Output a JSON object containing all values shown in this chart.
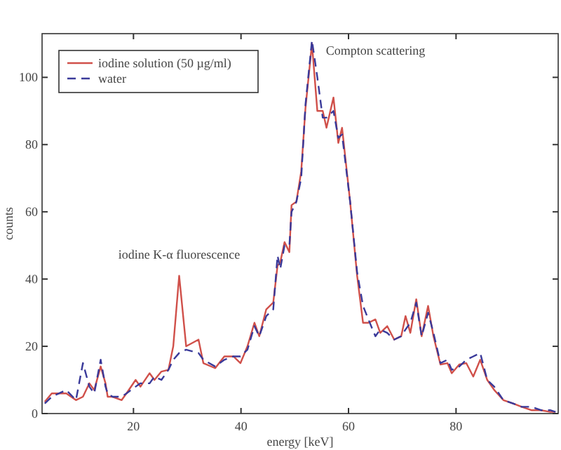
{
  "chart_data": {
    "type": "line",
    "xlabel": "energy [keV]",
    "ylabel": "counts",
    "xlim": [
      3,
      99
    ],
    "ylim": [
      0,
      113
    ],
    "xticks": [
      20,
      40,
      60,
      80
    ],
    "yticks": [
      0,
      20,
      40,
      60,
      80,
      100
    ],
    "grid": false,
    "legend": "top left",
    "annotations": [
      {
        "text": "iodine K-α fluorescence",
        "x": 28.5,
        "y": 41
      },
      {
        "text": "Compton scattering",
        "x": 53.2,
        "y": 110
      }
    ],
    "series": [
      {
        "name": "iodine solution (50 µg/ml)",
        "color": "#d0504a",
        "line_style": "solid",
        "x": [
          3.5,
          4.8,
          7.5,
          9.3,
          10.6,
          11.8,
          12.7,
          13.9,
          14.8,
          15.2,
          16.1,
          17.8,
          18.7,
          20.4,
          21.3,
          23,
          23.9,
          25.2,
          26.5,
          27.4,
          28.5,
          29.8,
          32.1,
          33,
          35.2,
          36.9,
          38.6,
          39.9,
          41.2,
          42.5,
          43.4,
          44.7,
          46,
          46.8,
          47.3,
          48.1,
          49,
          49.4,
          50.3,
          51.2,
          52,
          53.2,
          54.2,
          55.2,
          55.9,
          57.2,
          58.1,
          58.8,
          60.3,
          61.6,
          62.7,
          63.7,
          65,
          65.9,
          67.2,
          68.5,
          69.8,
          70.6,
          71.5,
          72.6,
          73.6,
          74.8,
          75.8,
          77.1,
          78.4,
          79.2,
          80.6,
          81.9,
          83.2,
          84.5,
          85.8,
          87.1,
          88.8,
          90.6,
          92.2,
          94,
          95.8,
          97.5,
          98.5
        ],
        "values": [
          3.5,
          6,
          6,
          4,
          5,
          9,
          7,
          14,
          9,
          5,
          5,
          4,
          6,
          10,
          8,
          12,
          10,
          12.5,
          13,
          20,
          41,
          20,
          22,
          15,
          13.5,
          17,
          17,
          15,
          20,
          27,
          23,
          31,
          33,
          44,
          45,
          51,
          48,
          62,
          63,
          72,
          91,
          110,
          90,
          90,
          85,
          94,
          80.5,
          85,
          63,
          41,
          27,
          27,
          28,
          24,
          26,
          22,
          23,
          29,
          24,
          34,
          23,
          32,
          23,
          14.6,
          15,
          12,
          14.6,
          15,
          11,
          16,
          10,
          7,
          4,
          3,
          2,
          1,
          1,
          0.5,
          0.5
        ]
      },
      {
        "name": "water",
        "color": "#3a3a9a",
        "line_style": "dashed",
        "x": [
          3.5,
          4.8,
          7.5,
          9.3,
          10.6,
          11.8,
          12.7,
          13.9,
          14.8,
          15.2,
          16.1,
          17.8,
          18.7,
          20.4,
          21.3,
          23,
          23.9,
          25.2,
          26.5,
          27.4,
          28.5,
          29.8,
          32.1,
          33,
          35.2,
          36.9,
          38.6,
          39.9,
          41.2,
          42.5,
          43.4,
          44.7,
          46,
          46.8,
          47.3,
          48.1,
          49,
          49.4,
          50.3,
          51.2,
          52,
          53.2,
          54.2,
          55.2,
          55.9,
          57.2,
          58.1,
          58.8,
          60.3,
          61.6,
          62.7,
          63.7,
          65,
          65.9,
          67.2,
          68.5,
          69.8,
          70.6,
          71.5,
          72.6,
          73.6,
          74.8,
          75.8,
          77.1,
          78.4,
          79.2,
          80.6,
          81.9,
          83.2,
          84.5,
          85.8,
          87.1,
          88.8,
          90.6,
          92.2,
          94,
          95.8,
          97.5,
          98.5
        ],
        "values": [
          3,
          5,
          7,
          4,
          15,
          8,
          6,
          16,
          8,
          6,
          5,
          5,
          6,
          8,
          9,
          9,
          11,
          10,
          13,
          16,
          18,
          19,
          18,
          16,
          14,
          16,
          17,
          17,
          19,
          26,
          23,
          29,
          31,
          47,
          43,
          50,
          50,
          60,
          63,
          70,
          92,
          111,
          100,
          88,
          88,
          90,
          82,
          83,
          63,
          42,
          32,
          28,
          23,
          25,
          24,
          22,
          23,
          25,
          27,
          33,
          23,
          30,
          24,
          15,
          16,
          13,
          14,
          16,
          17,
          18,
          10,
          8,
          4,
          3,
          2,
          2,
          1,
          1,
          0.5
        ]
      }
    ]
  }
}
